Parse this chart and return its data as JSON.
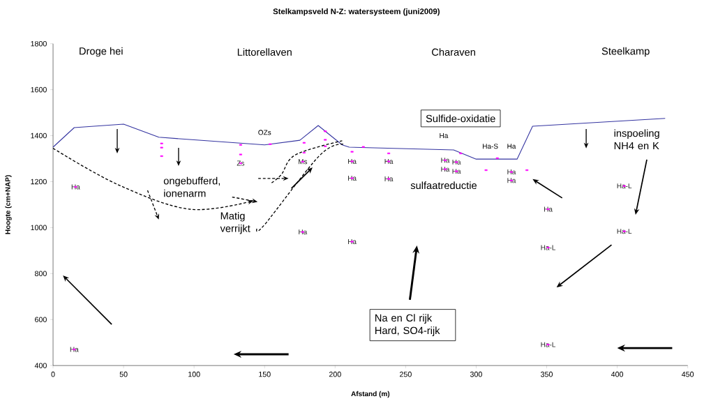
{
  "chart_data": {
    "type": "line",
    "title": "Stelkampsveld N-Z: watersysteem (juni2009)",
    "xlabel": "Afstand (m)",
    "ylabel": "Hoogte (cm+NAP)",
    "xlim": [
      0,
      450
    ],
    "ylim": [
      400,
      1800
    ],
    "xticks": [
      0,
      50,
      100,
      150,
      200,
      250,
      300,
      350,
      400,
      450
    ],
    "yticks": [
      400,
      600,
      800,
      1000,
      1200,
      1400,
      1600,
      1800
    ],
    "series": [
      {
        "color": "#3333a0",
        "marker": "none",
        "x": [
          0,
          15,
          50,
          75,
          150,
          175,
          188,
          205,
          210,
          284,
          300,
          329,
          340,
          434
        ],
        "values": [
          1350,
          1435,
          1450,
          1393,
          1360,
          1380,
          1444,
          1360,
          1350,
          1338,
          1298,
          1298,
          1441,
          1475
        ]
      },
      {
        "type": "scatter",
        "color": "#ff00ff",
        "marker": "square",
        "x": [
          16,
          15,
          77,
          77,
          77,
          133,
          133,
          133,
          154,
          178,
          178,
          177,
          177,
          193,
          193,
          193,
          212,
          212,
          212,
          212,
          220,
          238,
          238,
          238,
          289,
          278,
          278,
          286,
          286,
          315,
          307,
          336,
          325,
          325,
          351,
          351,
          351,
          405,
          405
        ],
        "values": [
          1177,
          470,
          1366,
          1348,
          1311,
          1360,
          1318,
          1280,
          1363,
          1369,
          1326,
          1287,
          981,
          1419,
          1382,
          1354,
          1330,
          1288,
          1215,
          939,
          1351,
          1323,
          1288,
          1212,
          1323,
          1293,
          1254,
          1285,
          1245,
          1302,
          1250,
          1250,
          1242,
          1205,
          1080,
          913,
          491,
          1181,
          984
        ],
        "value_labels": [
          "Ha",
          "Ha",
          null,
          null,
          null,
          null,
          null,
          "Zs",
          null,
          null,
          null,
          "Ms",
          "Ha",
          null,
          null,
          null,
          null,
          "Ha",
          "Ha",
          "Ha",
          null,
          null,
          "Ha",
          "Ha",
          null,
          "Ha",
          "Ha",
          "Ha",
          "Ha",
          null,
          null,
          null,
          "Ha",
          "Ha",
          "Ha",
          "Ha-L",
          "Ha-L",
          "Ha-L",
          "Ha-L"
        ]
      }
    ],
    "annotations": [
      "Droge hei",
      "Littorellaven",
      "Charaven",
      "Steelkamp",
      "Ha",
      "Ha-S",
      "Ha",
      "OZs",
      "Sulfide-oxidatie",
      "ongebufferd, ionenarm",
      {
        "text": "Matig verrijkt",
        "x": 206,
        "y": 1363
      },
      "sulfaatreductie",
      "inspoeling NH4 en K",
      "Na en Cl rijk Hard, SO4-rijk"
    ]
  }
}
